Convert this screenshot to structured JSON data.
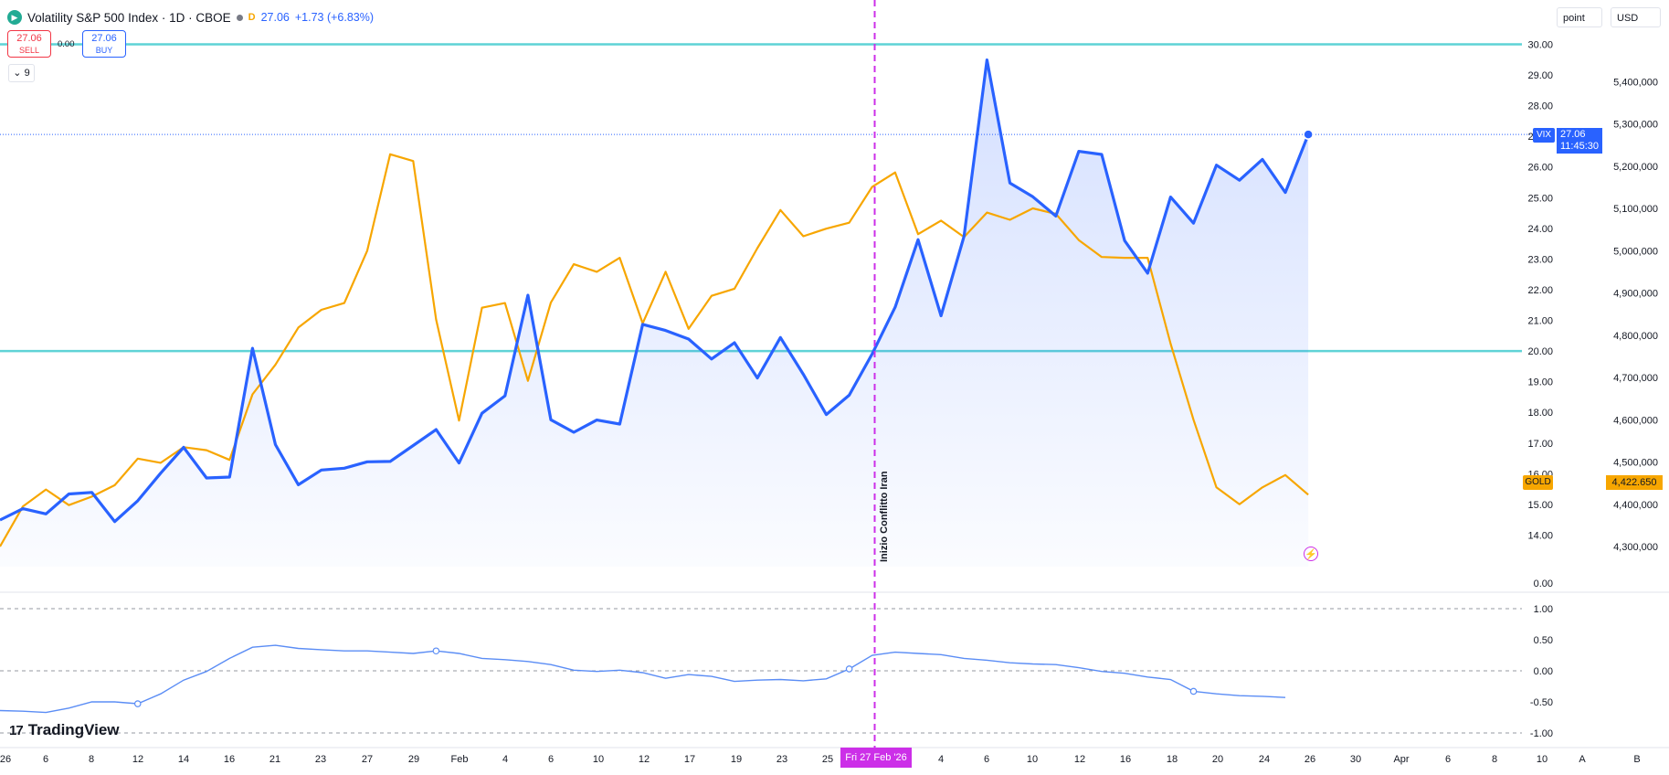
{
  "header": {
    "title": "Volatility S&P 500 Index · 1D · CBOE",
    "badge": "D",
    "last": "27.06",
    "change": "+1.73 (+6.83%)"
  },
  "trade": {
    "sell_price": "27.06",
    "sell_label": "SELL",
    "spread": "0.00",
    "buy_price": "27.06",
    "buy_label": "BUY"
  },
  "indicator_toggle": "9",
  "toolbar": {
    "unit": "point",
    "currency": "USD"
  },
  "tags": {
    "vix_label": "VIX",
    "vix_price": "27.06",
    "vix_countdown": "11:45:30",
    "gold_label": "GOLD",
    "gold_price": "4,422.650"
  },
  "event": {
    "label": "Inizio Conflitto Iran",
    "date_tag": "Fri 27 Feb '26"
  },
  "logo": "TradingView",
  "colors": {
    "vix": "#2962ff",
    "gold": "#f7a600",
    "hline": "#5fd3d6",
    "event": "#cc2fe8",
    "oscillator": "#5b8df5"
  },
  "chart_data": {
    "type": "line",
    "x_ticks": [
      "26",
      "6",
      "8",
      "12",
      "14",
      "16",
      "21",
      "23",
      "27",
      "29",
      "Feb",
      "4",
      "6",
      "10",
      "12",
      "17",
      "19",
      "23",
      "25",
      "4",
      "6",
      "10",
      "12",
      "16",
      "18",
      "20",
      "24",
      "26",
      "30",
      "Apr",
      "6",
      "8",
      "10",
      "A",
      "B"
    ],
    "left_axis_ticks": [
      "30.00",
      "29.00",
      "28.00",
      "27.00",
      "26.00",
      "25.00",
      "24.00",
      "23.00",
      "22.00",
      "21.00",
      "20.00",
      "19.00",
      "18.00",
      "17.00",
      "16.00",
      "15.00",
      "14.00",
      "0.00"
    ],
    "right_axis_ticks": [
      "5,400,000",
      "5,300,000",
      "5,200,000",
      "5,100,000",
      "5,000,000",
      "4,900,000",
      "4,800,000",
      "4,700,000",
      "4,600,000",
      "4,500,000",
      "4,400,000",
      "4,300,000"
    ],
    "oscillator_ticks": [
      "1.00",
      "0.50",
      "0.00",
      "-0.50",
      "-1.00"
    ],
    "horizontal_levels": [
      30,
      20
    ],
    "series": [
      {
        "name": "VIX",
        "axis": "left",
        "values": [
          14.49,
          14.86,
          14.69,
          15.34,
          15.39,
          14.44,
          15.12,
          16.02,
          16.86,
          15.86,
          15.89,
          20.09,
          16.95,
          15.64,
          16.12,
          16.18,
          16.39,
          16.4,
          16.92,
          17.44,
          16.35,
          17.97,
          18.54,
          21.82,
          17.76,
          17.35,
          17.75,
          17.62,
          20.87,
          20.67,
          20.39,
          19.74,
          20.27,
          19.12,
          20.44,
          19.24,
          17.93,
          18.56,
          19.91,
          21.43,
          23.63,
          21.15,
          23.74,
          29.49,
          25.48,
          25.03,
          24.4,
          26.51,
          26.41,
          23.6,
          22.54,
          25.02,
          24.17,
          26.06,
          25.57,
          26.25,
          25.17,
          27.06
        ],
        "fill": "area"
      },
      {
        "name": "GOLD",
        "axis": "right",
        "values": [
          4300,
          4395,
          4435,
          4398,
          4418,
          4445,
          4508,
          4498,
          4535,
          4528,
          4505,
          4660,
          4730,
          4818,
          4860,
          4876,
          5000,
          5228,
          5212,
          4837,
          4598,
          4865,
          4876,
          4692,
          4877,
          4968,
          4950,
          4983,
          4828,
          4950,
          4815,
          4893,
          4910,
          5006,
          5096,
          5034,
          5052,
          5066,
          5151,
          5185,
          5039,
          5071,
          5032,
          5090,
          5073,
          5100,
          5087,
          5025,
          4985,
          4983,
          4983,
          4780,
          4600,
          4440,
          4400,
          4440,
          4469,
          4422.65
        ]
      }
    ],
    "oscillator": {
      "values": [
        -0.64,
        -0.65,
        -0.67,
        -0.6,
        -0.5,
        -0.5,
        -0.53,
        -0.37,
        -0.15,
        -0.01,
        0.2,
        0.38,
        0.41,
        0.36,
        0.34,
        0.32,
        0.32,
        0.3,
        0.28,
        0.32,
        0.28,
        0.2,
        0.18,
        0.15,
        0.1,
        0.01,
        -0.01,
        0.01,
        -0.03,
        -0.12,
        -0.06,
        -0.09,
        -0.17,
        -0.15,
        -0.14,
        -0.16,
        -0.13,
        0.03,
        0.25,
        0.3,
        0.28,
        0.26,
        0.2,
        0.17,
        0.13,
        0.11,
        0.1,
        0.05,
        -0.01,
        -0.04,
        -0.1,
        -0.14,
        -0.33,
        -0.37,
        -0.4,
        -0.41,
        -0.43
      ]
    }
  }
}
